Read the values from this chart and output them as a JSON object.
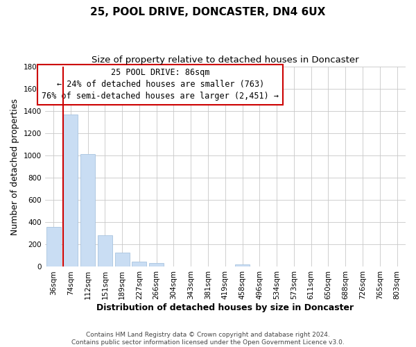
{
  "title": "25, POOL DRIVE, DONCASTER, DN4 6UX",
  "subtitle": "Size of property relative to detached houses in Doncaster",
  "xlabel": "Distribution of detached houses by size in Doncaster",
  "ylabel": "Number of detached properties",
  "bar_labels": [
    "36sqm",
    "74sqm",
    "112sqm",
    "151sqm",
    "189sqm",
    "227sqm",
    "266sqm",
    "304sqm",
    "343sqm",
    "381sqm",
    "419sqm",
    "458sqm",
    "496sqm",
    "534sqm",
    "573sqm",
    "611sqm",
    "650sqm",
    "688sqm",
    "726sqm",
    "765sqm",
    "803sqm"
  ],
  "bar_values": [
    355,
    1365,
    1012,
    285,
    130,
    45,
    35,
    0,
    0,
    0,
    0,
    20,
    0,
    0,
    0,
    0,
    0,
    0,
    0,
    0,
    0
  ],
  "bar_color": "#c9ddf3",
  "bar_edge_color": "#a8c4e0",
  "property_sqm": 86,
  "annotation_line1": "25 POOL DRIVE: 86sqm",
  "annotation_line2": "← 24% of detached houses are smaller (763)",
  "annotation_line3": "76% of semi-detached houses are larger (2,451) →",
  "red_line_color": "#cc0000",
  "ylim": [
    0,
    1800
  ],
  "yticks": [
    0,
    200,
    400,
    600,
    800,
    1000,
    1200,
    1400,
    1600,
    1800
  ],
  "footer_line1": "Contains HM Land Registry data © Crown copyright and database right 2024.",
  "footer_line2": "Contains public sector information licensed under the Open Government Licence v3.0.",
  "background_color": "#ffffff",
  "grid_color": "#c8c8c8",
  "title_fontsize": 11,
  "subtitle_fontsize": 9.5,
  "axis_label_fontsize": 9,
  "tick_fontsize": 7.5,
  "annotation_fontsize": 8.5,
  "footer_fontsize": 6.5
}
